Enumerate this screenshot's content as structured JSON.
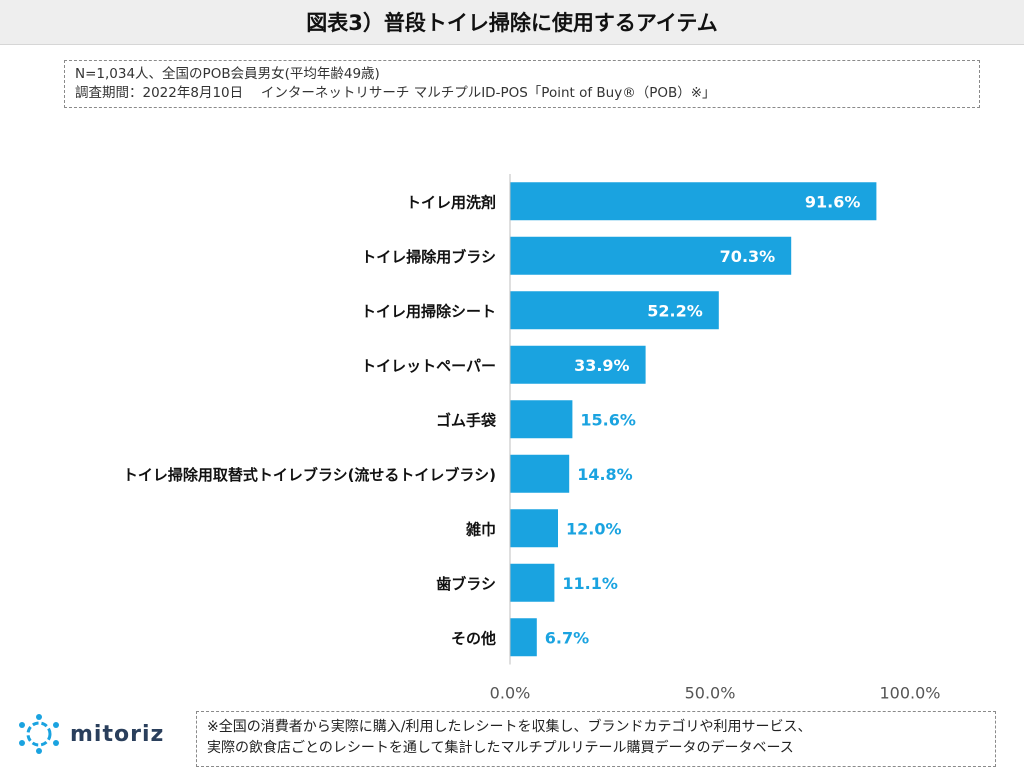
{
  "title": "図表3）普段トイレ掃除に使用するアイテム",
  "notes": {
    "line1": "N=1,034人、全国のPOB会員男女(平均年齢49歳)",
    "line2": "調査期間：2022年8月10日　 インターネットリサーチ マルチプルID-POS「Point of Buy®（POB）※」"
  },
  "chart_data": {
    "type": "bar",
    "orientation": "horizontal",
    "categories": [
      "トイレ用洗剤",
      "トイレ掃除用ブラシ",
      "トイレ用掃除シート",
      "トイレットペーパー",
      "ゴム手袋",
      "トイレ掃除用取替式トイレブラシ(流せるトイレブラシ)",
      "雑巾",
      "歯ブラシ",
      "その他"
    ],
    "values": [
      91.6,
      70.3,
      52.2,
      33.9,
      15.6,
      14.8,
      12.0,
      11.1,
      6.7
    ],
    "value_labels": [
      "91.6%",
      "70.3%",
      "52.2%",
      "33.9%",
      "15.6%",
      "14.8%",
      "12.0%",
      "11.1%",
      "6.7%"
    ],
    "xlim": [
      0,
      100
    ],
    "x_ticks": [
      "0.0%",
      "50.0%",
      "100.0%"
    ],
    "grid": false,
    "legend": "none",
    "bar_color": "#1aa3e0",
    "label_inside_color": "#ffffff",
    "label_outside_color": "#1aa3e0"
  },
  "footer": {
    "line1": "※全国の消費者から実際に購入/利用したレシートを収集し、ブランドカテゴリや利用サービス、",
    "line2": "実際の飲食店ごとのレシートを通して集計したマルチプルリテール購買データのデータベース"
  },
  "logo": {
    "text": "mitoriz",
    "icon": "mitoriz-logo-icon"
  }
}
